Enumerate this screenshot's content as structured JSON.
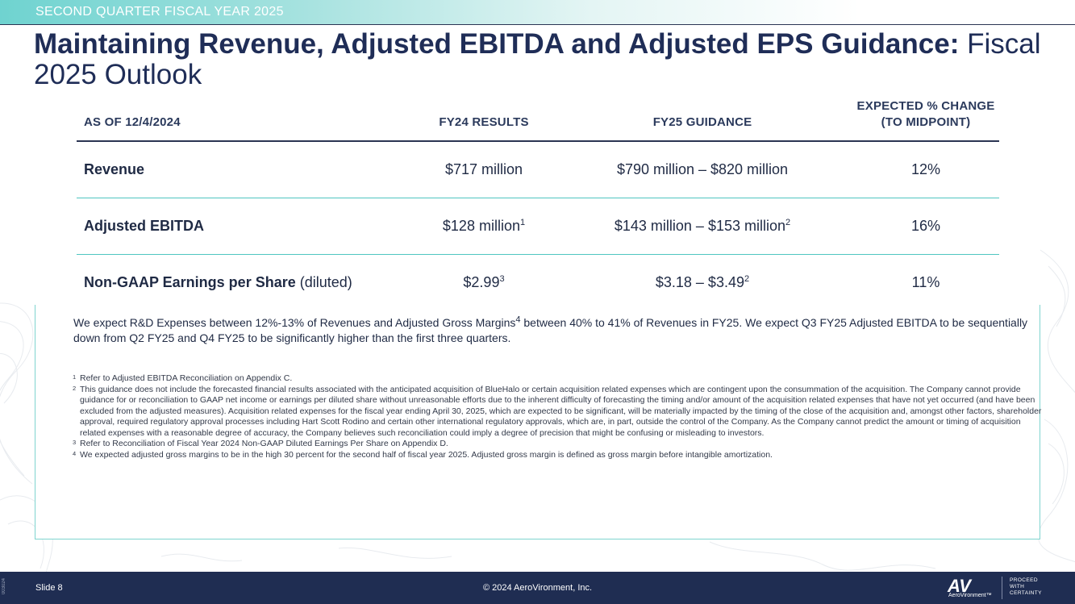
{
  "header": {
    "section": "SECOND QUARTER FISCAL YEAR 2025"
  },
  "title": {
    "bold": "Maintaining Revenue, Adjusted EBITDA and Adjusted EPS Guidance:",
    "light": "Fiscal 2025 Outlook"
  },
  "table": {
    "headers": [
      "AS OF 12/4/2024",
      "FY24 RESULTS",
      "FY25 GUIDANCE",
      "EXPECTED % CHANGE",
      "(TO MIDPOINT)"
    ],
    "rows": [
      {
        "label": "Revenue",
        "qualifier": "",
        "fy24": "$717 million",
        "fy24_sup": "",
        "fy25": "$790 million – $820 million",
        "fy25_sup": "",
        "change": "12%"
      },
      {
        "label": "Adjusted EBITDA",
        "qualifier": "",
        "fy24": "$128 million",
        "fy24_sup": "1",
        "fy25": "$143 million – $153 million",
        "fy25_sup": "2",
        "change": "16%"
      },
      {
        "label": "Non-GAAP Earnings per Share",
        "qualifier": "(diluted)",
        "fy24": "$2.99",
        "fy24_sup": "3",
        "fy25": "$3.18 – $3.49",
        "fy25_sup": "2",
        "change": "11%"
      }
    ]
  },
  "summary": {
    "part1": "We expect R&D Expenses between 12%-13% of Revenues and Adjusted Gross Margins",
    "sup": "4",
    "part2": " between 40% to 41% of Revenues in FY25. We expect Q3 FY25 Adjusted EBITDA to be sequentially down from Q2 FY25 and Q4 FY25 to be significantly higher than the first three quarters."
  },
  "footnotes": [
    {
      "num": "1",
      "text": "Refer to Adjusted EBITDA Reconciliation on Appendix C."
    },
    {
      "num": "2",
      "text": "This guidance does not include the forecasted financial results associated with the anticipated acquisition of BlueHalo or certain acquisition related expenses which are contingent upon the consummation of the acquisition. The Company cannot provide guidance for or reconciliation to GAAP net income or earnings per diluted share without unreasonable efforts due to the inherent difficulty of forecasting the timing and/or amount of the acquisition related expenses that have not yet occurred (and have been excluded from the adjusted measures). Acquisition related expenses for the fiscal year ending April 30, 2025, which are expected to be significant, will be materially impacted by the timing of the close of the acquisition and, amongst other factors, shareholder approval, required regulatory approval processes including Hart Scott Rodino and certain other international regulatory approvals, which are, in part, outside the control of the Company. As the Company cannot predict the amount or timing of acquisition related expenses with a reasonable degree of accuracy, the Company believes such reconciliation could imply a degree of precision that might be confusing or misleading to investors."
    },
    {
      "num": "3",
      "text": "Refer to Reconciliation of Fiscal Year 2024 Non-GAAP Diluted Earnings Per Share on Appendix D."
    },
    {
      "num": "4",
      "text": "We expected adjusted gross margins to be in the high 30 percent for the second half of fiscal year 2025. Adjusted gross margin is defined as gross margin before intangible amortization."
    }
  ],
  "footer": {
    "vertical_code": "003024",
    "slide": "Slide 8",
    "copyright": "© 2024 AeroVironment, Inc.",
    "logo_mark": "AV",
    "logo_name": "AeroVironment™",
    "tagline": [
      "PROCEED",
      "WITH",
      "CERTAINTY"
    ]
  },
  "colors": {
    "navy": "#1f2d52",
    "teal": "#4fc5c1",
    "title": "#1f2d57"
  }
}
